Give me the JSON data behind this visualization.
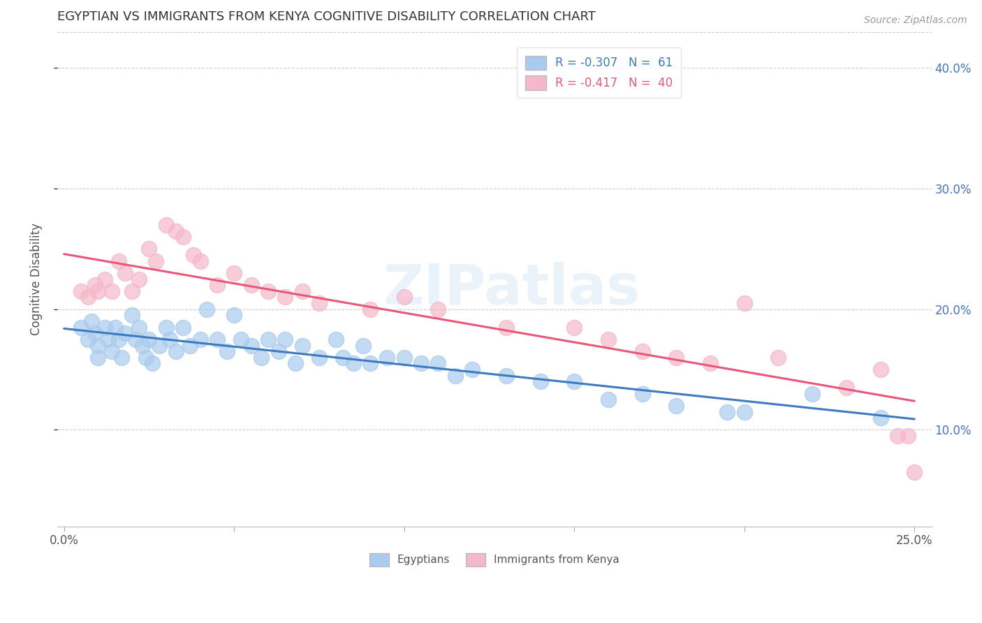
{
  "title": "EGYPTIAN VS IMMIGRANTS FROM KENYA COGNITIVE DISABILITY CORRELATION CHART",
  "source": "Source: ZipAtlas.com",
  "ylabel": "Cognitive Disability",
  "xlim": [
    -0.002,
    0.255
  ],
  "ylim": [
    0.02,
    0.43
  ],
  "xticks": [
    0.0,
    0.05,
    0.1,
    0.15,
    0.2,
    0.25
  ],
  "xtick_labels_bottom": [
    "0.0%",
    "",
    "",
    "",
    "",
    "25.0%"
  ],
  "yticks": [
    0.1,
    0.2,
    0.3,
    0.4
  ],
  "ytick_labels": [
    "10.0%",
    "20.0%",
    "30.0%",
    "40.0%"
  ],
  "legend_entry_blue": "R = -0.307   N =  61",
  "legend_entry_pink": "R = -0.417   N =  40",
  "legend_label_egyptians": "Egyptians",
  "legend_label_kenya": "Immigrants from Kenya",
  "blue_color": "#aacbee",
  "pink_color": "#f4b8cb",
  "blue_line_color": "#3c7bbf",
  "pink_line_color": "#e8567a",
  "watermark": "ZIPatlas",
  "blue_x": [
    0.005,
    0.007,
    0.008,
    0.009,
    0.01,
    0.01,
    0.012,
    0.013,
    0.014,
    0.015,
    0.016,
    0.017,
    0.018,
    0.02,
    0.021,
    0.022,
    0.023,
    0.024,
    0.025,
    0.026,
    0.028,
    0.03,
    0.031,
    0.033,
    0.035,
    0.037,
    0.04,
    0.042,
    0.045,
    0.048,
    0.05,
    0.052,
    0.055,
    0.058,
    0.06,
    0.063,
    0.065,
    0.068,
    0.07,
    0.075,
    0.08,
    0.082,
    0.085,
    0.088,
    0.09,
    0.095,
    0.1,
    0.105,
    0.11,
    0.115,
    0.12,
    0.13,
    0.14,
    0.15,
    0.16,
    0.17,
    0.18,
    0.195,
    0.2,
    0.22,
    0.24
  ],
  "blue_y": [
    0.185,
    0.175,
    0.19,
    0.18,
    0.17,
    0.16,
    0.185,
    0.175,
    0.165,
    0.185,
    0.175,
    0.16,
    0.18,
    0.195,
    0.175,
    0.185,
    0.17,
    0.16,
    0.175,
    0.155,
    0.17,
    0.185,
    0.175,
    0.165,
    0.185,
    0.17,
    0.175,
    0.2,
    0.175,
    0.165,
    0.195,
    0.175,
    0.17,
    0.16,
    0.175,
    0.165,
    0.175,
    0.155,
    0.17,
    0.16,
    0.175,
    0.16,
    0.155,
    0.17,
    0.155,
    0.16,
    0.16,
    0.155,
    0.155,
    0.145,
    0.15,
    0.145,
    0.14,
    0.14,
    0.125,
    0.13,
    0.12,
    0.115,
    0.115,
    0.13,
    0.11
  ],
  "pink_x": [
    0.005,
    0.007,
    0.009,
    0.01,
    0.012,
    0.014,
    0.016,
    0.018,
    0.02,
    0.022,
    0.025,
    0.027,
    0.03,
    0.033,
    0.035,
    0.038,
    0.04,
    0.045,
    0.05,
    0.055,
    0.06,
    0.065,
    0.07,
    0.075,
    0.09,
    0.1,
    0.11,
    0.13,
    0.15,
    0.16,
    0.17,
    0.18,
    0.19,
    0.2,
    0.21,
    0.23,
    0.24,
    0.245,
    0.248,
    0.25
  ],
  "pink_y": [
    0.215,
    0.21,
    0.22,
    0.215,
    0.225,
    0.215,
    0.24,
    0.23,
    0.215,
    0.225,
    0.25,
    0.24,
    0.27,
    0.265,
    0.26,
    0.245,
    0.24,
    0.22,
    0.23,
    0.22,
    0.215,
    0.21,
    0.215,
    0.205,
    0.2,
    0.21,
    0.2,
    0.185,
    0.185,
    0.175,
    0.165,
    0.16,
    0.155,
    0.205,
    0.16,
    0.135,
    0.15,
    0.095,
    0.095,
    0.065
  ]
}
